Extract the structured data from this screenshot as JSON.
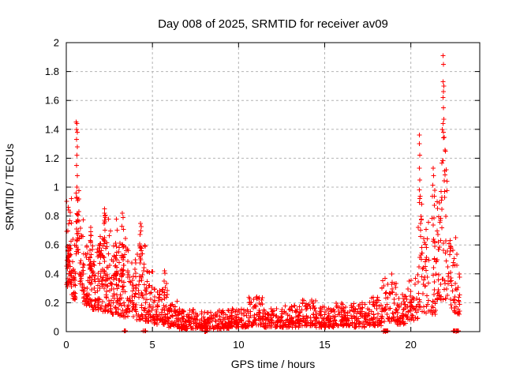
{
  "chart_data": {
    "type": "scatter",
    "title": "Day 008 of 2025, SRMTID for receiver av09",
    "xlabel": "GPS time / hours",
    "ylabel": "SRMTID / TECUs",
    "xlim": [
      0,
      24
    ],
    "ylim": [
      0,
      2
    ],
    "xticks": [
      0,
      5,
      10,
      15,
      20
    ],
    "yticks": [
      0,
      0.2,
      0.4,
      0.6,
      0.8,
      1,
      1.2,
      1.4,
      1.6,
      1.8,
      2
    ],
    "grid": true,
    "legend": "none",
    "marker": "plus",
    "marker_color": "#ff0000",
    "grid_color": "#b4b4b4",
    "frame_color": "#000000",
    "series": [
      {
        "name": "SRMTID",
        "description": "Dense scatter of red plus markers: high values near 0-1h (to 1.45), decaying cloud 0-5h, low baseline ~0.03-0.2 from 5-19h with small bumps near 11h and 18.9h, rising after 19.5h to extreme spike ~1.9 near 22h, trailing to ~23h; clusters of points at y=0 near 3.5, 4.6, 8.1, 18.5 and 22.6h",
        "peak_points": [
          [
            0.58,
            1.45
          ],
          [
            0.62,
            1.44
          ],
          [
            0.6,
            1.4
          ],
          [
            0.63,
            1.38
          ],
          [
            0.6,
            1.33
          ],
          [
            0.65,
            1.28
          ],
          [
            0.62,
            1.22
          ],
          [
            0.6,
            1.15
          ],
          [
            0.64,
            1.08
          ],
          [
            0.62,
            1.0
          ],
          [
            1.42,
            0.72
          ],
          [
            2.22,
            0.85
          ],
          [
            2.25,
            0.8
          ],
          [
            2.45,
            0.78
          ],
          [
            2.9,
            0.78
          ],
          [
            3.25,
            0.82
          ],
          [
            3.3,
            0.79
          ],
          [
            4.3,
            0.75
          ],
          [
            5.7,
            0.42
          ],
          [
            11.05,
            0.24
          ],
          [
            18.9,
            0.4
          ],
          [
            20.5,
            1.36
          ],
          [
            20.5,
            1.3
          ],
          [
            20.52,
            1.22
          ],
          [
            20.5,
            1.13
          ],
          [
            20.53,
            1.05
          ],
          [
            20.5,
            0.98
          ],
          [
            20.52,
            0.92
          ],
          [
            21.3,
            1.13
          ],
          [
            21.33,
            1.08
          ],
          [
            21.88,
            1.91
          ],
          [
            21.9,
            1.85
          ],
          [
            21.87,
            1.73
          ],
          [
            21.92,
            1.7
          ],
          [
            21.9,
            1.66
          ],
          [
            21.88,
            1.62
          ],
          [
            21.9,
            1.55
          ],
          [
            21.92,
            1.47
          ],
          [
            21.88,
            1.44
          ],
          [
            21.9,
            1.38
          ],
          [
            22.0,
            1.25
          ],
          [
            22.05,
            1.12
          ],
          [
            22.1,
            1.04
          ],
          [
            21.97,
            0.97
          ],
          [
            22.6,
            0.65
          ]
        ],
        "zero_points": [
          {
            "h": 3.42,
            "n": 2
          },
          {
            "h": 3.48,
            "n": 1
          },
          {
            "h": 4.52,
            "n": 1
          },
          {
            "h": 4.6,
            "n": 2
          },
          {
            "h": 8.08,
            "n": 5
          },
          {
            "h": 8.14,
            "n": 4
          },
          {
            "h": 18.45,
            "n": 4
          },
          {
            "h": 18.58,
            "n": 4
          },
          {
            "h": 18.66,
            "n": 2
          },
          {
            "h": 22.52,
            "n": 2
          },
          {
            "h": 22.6,
            "n": 1
          },
          {
            "h": 22.68,
            "n": 4
          },
          {
            "h": 22.76,
            "n": 2
          }
        ],
        "density_bands": [
          [
            0.0,
            0.3,
            0.3,
            0.92,
            40
          ],
          [
            0.05,
            0.25,
            0.45,
            0.6,
            25
          ],
          [
            0.3,
            0.55,
            0.22,
            0.7,
            30
          ],
          [
            0.55,
            0.75,
            0.5,
            1.0,
            30
          ],
          [
            0.75,
            1.05,
            0.28,
            0.8,
            30
          ],
          [
            1.0,
            1.5,
            0.18,
            0.6,
            55
          ],
          [
            1.38,
            1.45,
            0.35,
            0.7,
            12
          ],
          [
            1.5,
            2.1,
            0.15,
            0.62,
            60
          ],
          [
            1.9,
            2.0,
            0.45,
            0.66,
            12
          ],
          [
            2.1,
            2.6,
            0.14,
            0.7,
            60
          ],
          [
            2.18,
            2.28,
            0.4,
            0.84,
            14
          ],
          [
            2.6,
            3.1,
            0.12,
            0.6,
            55
          ],
          [
            2.85,
            2.95,
            0.3,
            0.77,
            12
          ],
          [
            3.1,
            3.6,
            0.1,
            0.65,
            55
          ],
          [
            3.2,
            3.35,
            0.3,
            0.82,
            14
          ],
          [
            3.6,
            4.1,
            0.1,
            0.55,
            45
          ],
          [
            4.1,
            4.6,
            0.08,
            0.6,
            45
          ],
          [
            4.25,
            4.35,
            0.3,
            0.74,
            10
          ],
          [
            4.6,
            5.1,
            0.07,
            0.42,
            45
          ],
          [
            5.1,
            5.6,
            0.05,
            0.3,
            45
          ],
          [
            5.6,
            5.9,
            0.05,
            0.42,
            30
          ],
          [
            5.9,
            6.5,
            0.03,
            0.22,
            50
          ],
          [
            6.5,
            7.5,
            0.02,
            0.16,
            75
          ],
          [
            7.5,
            8.5,
            0.02,
            0.14,
            75
          ],
          [
            8.5,
            9.5,
            0.02,
            0.15,
            75
          ],
          [
            9.5,
            10.6,
            0.03,
            0.16,
            80
          ],
          [
            10.6,
            11.4,
            0.04,
            0.24,
            60
          ],
          [
            11.4,
            12.5,
            0.03,
            0.16,
            80
          ],
          [
            12.5,
            13.5,
            0.03,
            0.18,
            75
          ],
          [
            13.5,
            14.5,
            0.04,
            0.22,
            75
          ],
          [
            14.5,
            15.5,
            0.03,
            0.18,
            75
          ],
          [
            15.5,
            16.5,
            0.04,
            0.2,
            75
          ],
          [
            16.5,
            17.5,
            0.03,
            0.2,
            75
          ],
          [
            17.5,
            18.3,
            0.04,
            0.24,
            60
          ],
          [
            18.3,
            19.2,
            0.07,
            0.38,
            60
          ],
          [
            19.2,
            19.8,
            0.05,
            0.26,
            45
          ],
          [
            19.8,
            20.4,
            0.08,
            0.38,
            45
          ],
          [
            20.4,
            20.65,
            0.15,
            0.95,
            28
          ],
          [
            20.65,
            21.5,
            0.12,
            0.8,
            60
          ],
          [
            21.25,
            21.4,
            0.5,
            1.05,
            10
          ],
          [
            21.5,
            22.3,
            0.22,
            1.0,
            65
          ],
          [
            21.8,
            22.0,
            0.9,
            1.45,
            10
          ],
          [
            22.3,
            22.9,
            0.12,
            0.6,
            45
          ]
        ]
      }
    ]
  }
}
